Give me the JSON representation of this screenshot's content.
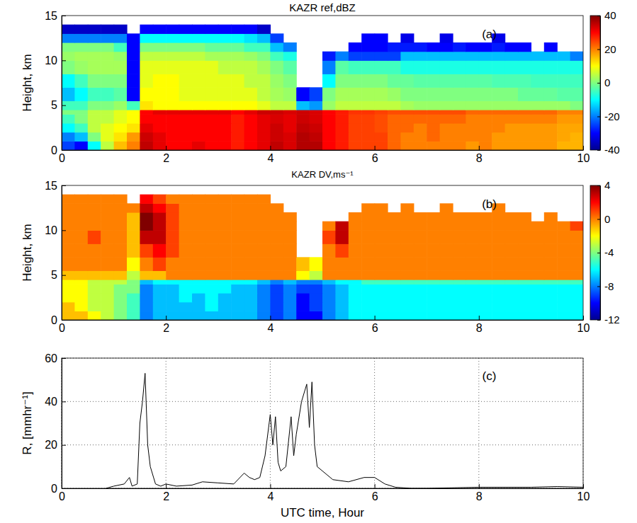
{
  "chart_data": [
    {
      "type": "heatmap",
      "title": "KAZR ref,dBZ",
      "ylabel": "Height, km",
      "annotation": "(a)",
      "xlim": [
        0,
        10
      ],
      "xticks": [
        0,
        2,
        4,
        6,
        8,
        10
      ],
      "ylim": [
        0,
        15
      ],
      "yticks": [
        0,
        5,
        10,
        15
      ],
      "grid": false,
      "x_edges": [
        0,
        0.25,
        0.5,
        0.75,
        1,
        1.25,
        1.5,
        1.75,
        2,
        2.25,
        2.5,
        2.75,
        3,
        3.25,
        3.5,
        3.75,
        4,
        4.25,
        4.5,
        4.75,
        5,
        5.25,
        5.5,
        5.75,
        6,
        6.25,
        6.5,
        6.75,
        7,
        7.25,
        7.5,
        7.75,
        8,
        8.25,
        8.5,
        8.75,
        9,
        9.25,
        9.5,
        9.75,
        10
      ],
      "y_edges": [
        0,
        1,
        2,
        3,
        4,
        4.5,
        5.5,
        7,
        8.5,
        10,
        11,
        12,
        13,
        14
      ],
      "cells": [
        [
          -25,
          -30,
          -10,
          5,
          15,
          20,
          35,
          32,
          30,
          30,
          32,
          30,
          30,
          28,
          30,
          32,
          35,
          33,
          36,
          36,
          30,
          28,
          25,
          25,
          25,
          22,
          20,
          20,
          20,
          20,
          20,
          18,
          20,
          18,
          18,
          18,
          18,
          18,
          16,
          16
        ],
        [
          -20,
          -15,
          0,
          8,
          12,
          18,
          34,
          32,
          30,
          30,
          30,
          30,
          30,
          28,
          30,
          32,
          34,
          33,
          36,
          35,
          30,
          28,
          25,
          25,
          25,
          22,
          20,
          20,
          22,
          20,
          20,
          20,
          20,
          18,
          18,
          18,
          18,
          18,
          17,
          16
        ],
        [
          -10,
          -5,
          5,
          8,
          10,
          12,
          32,
          30,
          30,
          30,
          30,
          30,
          30,
          28,
          30,
          32,
          34,
          32,
          35,
          34,
          30,
          28,
          25,
          25,
          24,
          22,
          22,
          20,
          22,
          20,
          20,
          20,
          20,
          20,
          18,
          18,
          18,
          18,
          17,
          17
        ],
        [
          -5,
          0,
          5,
          5,
          8,
          10,
          30,
          30,
          30,
          30,
          30,
          30,
          30,
          28,
          30,
          32,
          33,
          32,
          34,
          33,
          30,
          28,
          25,
          25,
          24,
          22,
          22,
          22,
          22,
          22,
          22,
          20,
          20,
          20,
          20,
          20,
          20,
          20,
          18,
          18
        ],
        [
          0,
          0,
          5,
          5,
          8,
          10,
          30,
          32,
          32,
          32,
          32,
          32,
          32,
          30,
          32,
          34,
          34,
          33,
          34,
          33,
          30,
          28,
          26,
          26,
          25,
          24,
          24,
          24,
          24,
          24,
          24,
          22,
          22,
          22,
          22,
          22,
          22,
          22,
          20,
          20
        ],
        [
          -5,
          -5,
          0,
          0,
          2,
          -5,
          12,
          10,
          10,
          10,
          10,
          10,
          10,
          10,
          10,
          8,
          5,
          5,
          -15,
          -18,
          2,
          5,
          5,
          5,
          5,
          5,
          3,
          2,
          2,
          2,
          2,
          2,
          2,
          2,
          2,
          2,
          2,
          2,
          2,
          0
        ],
        [
          -15,
          -10,
          -5,
          -5,
          -3,
          -30,
          10,
          10,
          10,
          8,
          8,
          8,
          8,
          8,
          8,
          5,
          3,
          2,
          -30,
          -25,
          0,
          3,
          3,
          3,
          3,
          2,
          0,
          0,
          0,
          0,
          0,
          0,
          0,
          0,
          0,
          -2,
          -2,
          -2,
          -3,
          -3
        ],
        [
          -10,
          -5,
          0,
          0,
          0,
          -30,
          8,
          10,
          10,
          8,
          8,
          8,
          8,
          8,
          5,
          5,
          2,
          0,
          null,
          null,
          -10,
          0,
          0,
          0,
          0,
          -2,
          -2,
          -3,
          -3,
          -3,
          -3,
          -3,
          -3,
          -4,
          -4,
          -4,
          -5,
          -5,
          -5,
          -5
        ],
        [
          0,
          2,
          3,
          3,
          3,
          -30,
          8,
          8,
          8,
          8,
          8,
          8,
          5,
          5,
          5,
          3,
          0,
          -3,
          null,
          null,
          -20,
          -3,
          -5,
          -5,
          -5,
          -5,
          -8,
          -8,
          -8,
          -8,
          -8,
          -8,
          -8,
          -8,
          -8,
          -8,
          -8,
          -8,
          -8,
          -8
        ],
        [
          2,
          3,
          3,
          3,
          2,
          -30,
          5,
          5,
          5,
          5,
          5,
          3,
          3,
          3,
          2,
          0,
          -5,
          -8,
          null,
          null,
          -28,
          -20,
          -25,
          -25,
          -25,
          -25,
          -15,
          -15,
          -15,
          -15,
          -15,
          -15,
          -15,
          -15,
          -15,
          -15,
          -15,
          -15,
          -15,
          -20
        ],
        [
          0,
          0,
          0,
          0,
          -5,
          -30,
          0,
          0,
          0,
          0,
          0,
          -2,
          -2,
          -2,
          -5,
          -5,
          -15,
          -20,
          null,
          null,
          null,
          null,
          -30,
          -30,
          -30,
          -28,
          -28,
          -28,
          -30,
          -30,
          -28,
          -30,
          -30,
          -28,
          -30,
          -30,
          null,
          -30,
          null,
          null
        ],
        [
          -20,
          -20,
          -20,
          -20,
          -20,
          -30,
          -10,
          -10,
          -10,
          -10,
          -10,
          -10,
          -10,
          -10,
          -12,
          -15,
          -25,
          null,
          null,
          null,
          null,
          null,
          null,
          -30,
          -30,
          null,
          -32,
          null,
          null,
          -32,
          null,
          null,
          null,
          -32,
          null,
          null,
          null,
          null,
          null,
          null
        ],
        [
          -35,
          -35,
          -35,
          -35,
          -35,
          null,
          -30,
          -30,
          -30,
          -30,
          -30,
          -30,
          -30,
          -30,
          -30,
          -35,
          null,
          null,
          null,
          null,
          null,
          null,
          null,
          null,
          null,
          null,
          null,
          null,
          null,
          null,
          null,
          null,
          null,
          null,
          null,
          null,
          null,
          null,
          null,
          null
        ]
      ],
      "colorbar": {
        "lim": [
          -40,
          40
        ],
        "ticks": [
          -40,
          -20,
          0,
          20,
          40
        ]
      }
    },
    {
      "type": "heatmap",
      "title": "KAZR DV,ms⁻¹",
      "ylabel": "Height, km",
      "annotation": "(b)",
      "xlim": [
        0,
        10
      ],
      "xticks": [
        0,
        2,
        4,
        6,
        8,
        10
      ],
      "ylim": [
        0,
        15
      ],
      "yticks": [
        0,
        5,
        10,
        15
      ],
      "grid": false,
      "x_edges": [
        0,
        0.25,
        0.5,
        0.75,
        1,
        1.25,
        1.5,
        1.75,
        2,
        2.25,
        2.5,
        2.75,
        3,
        3.25,
        3.5,
        3.75,
        4,
        4.25,
        4.5,
        4.75,
        5,
        5.25,
        5.5,
        5.75,
        6,
        6.25,
        6.5,
        6.75,
        7,
        7.25,
        7.5,
        7.75,
        8,
        8.25,
        8.5,
        8.75,
        9,
        9.25,
        9.5,
        9.75,
        10
      ],
      "y_edges": [
        0,
        1,
        2,
        3,
        4,
        4.5,
        5.5,
        7,
        8.5,
        10,
        11,
        12,
        13,
        14
      ],
      "cells": [
        [
          -1,
          -1,
          -2,
          -3,
          -4,
          -5,
          -8,
          -7,
          -7,
          -7,
          -7,
          -7,
          -7,
          -7,
          -7,
          -8,
          -9,
          -8,
          -10,
          -10,
          -8,
          -7,
          -6,
          -6,
          -6,
          -6,
          -6,
          -6,
          -6,
          -6,
          -6,
          -6,
          -6,
          -6,
          -6,
          -6,
          -6,
          -6,
          -6,
          -6
        ],
        [
          -1,
          -2,
          -3,
          -3,
          -4,
          -5,
          -8,
          -7,
          -7,
          -7,
          -7,
          -6,
          -7,
          -7,
          -7,
          -8,
          -9,
          -8,
          -10,
          -9,
          -8,
          -7,
          -6,
          -6,
          -6,
          -6,
          -6,
          -6,
          -6,
          -6,
          -6,
          -6,
          -6,
          -6,
          -6,
          -6,
          -6,
          -6,
          -6,
          -6
        ],
        [
          -2,
          -2,
          -3,
          -3,
          -4,
          -5,
          -8,
          -7,
          -7,
          -6,
          -7,
          -6,
          -7,
          -7,
          -7,
          -8,
          -9,
          -8,
          -10,
          -9,
          -8,
          -7,
          -6,
          -6,
          -6,
          -6,
          -6,
          -6,
          -6,
          -6,
          -6,
          -6,
          -6,
          -6,
          -6,
          -6,
          -6,
          -6,
          -6,
          -6
        ],
        [
          -2,
          -2,
          -3,
          -3,
          -4,
          -4,
          -8,
          -7,
          -7,
          -6,
          -6,
          -6,
          -6,
          -7,
          -7,
          -8,
          -9,
          -8,
          -9,
          -9,
          -8,
          -7,
          -6,
          -6,
          -6,
          -6,
          -6,
          -6,
          -6,
          -6,
          -6,
          -6,
          -6,
          -6,
          -6,
          -6,
          -6,
          -6,
          -6,
          -6
        ],
        [
          -2,
          -2,
          -3,
          -3,
          -3,
          -4,
          -7,
          -6,
          -6,
          -6,
          -6,
          -6,
          -6,
          -6,
          -6,
          -7,
          -8,
          -7,
          -8,
          -8,
          -7,
          -6,
          -6,
          -5,
          -5,
          -5,
          -5,
          -5,
          -5,
          -5,
          -5,
          -5,
          -5,
          -5,
          -5,
          -5,
          -5,
          -5,
          -5,
          -5
        ],
        [
          -1,
          -1,
          -1,
          -1,
          -1,
          -3,
          -1,
          -1,
          0,
          0,
          0,
          0,
          0,
          0,
          0,
          0,
          0,
          0,
          -2,
          -3,
          0,
          0,
          0,
          0,
          0,
          0,
          0,
          0,
          0,
          0,
          0,
          0,
          0,
          0,
          0,
          0,
          0,
          0,
          0,
          0
        ],
        [
          0,
          0,
          0,
          0,
          0,
          -2,
          0,
          1,
          0,
          0,
          0,
          0,
          0,
          0,
          0,
          0,
          0,
          0,
          -1,
          -2,
          0,
          0,
          0,
          0,
          0,
          0,
          0,
          0,
          0,
          0,
          0,
          0,
          0,
          0,
          0,
          0,
          0,
          0,
          0,
          0
        ],
        [
          0,
          0,
          0,
          0,
          0,
          -1,
          1,
          2,
          1,
          0,
          0,
          0,
          0,
          0,
          0,
          0,
          0,
          0,
          null,
          null,
          0,
          1,
          0,
          0,
          0,
          0,
          0,
          0,
          0,
          0,
          0,
          0,
          0,
          0,
          0,
          0,
          0,
          0,
          0,
          0
        ],
        [
          0,
          0,
          1,
          0,
          0,
          -1,
          3,
          3,
          1,
          0,
          0,
          0,
          0,
          0,
          0,
          0,
          0,
          0,
          null,
          null,
          1,
          3,
          0,
          0,
          0,
          0,
          0,
          0,
          0,
          0,
          0,
          0,
          0,
          0,
          0,
          0,
          0,
          0,
          0,
          0
        ],
        [
          0,
          0,
          0,
          0,
          0,
          -1,
          4,
          3,
          1,
          0,
          0,
          0,
          0,
          0,
          0,
          0,
          0,
          0,
          null,
          null,
          0,
          3,
          0,
          0,
          0,
          0,
          0,
          0,
          0,
          0,
          0,
          0,
          0,
          0,
          0,
          0,
          0,
          0,
          0,
          1
        ],
        [
          0,
          0,
          0,
          0,
          0,
          -1,
          4,
          3,
          1,
          0,
          0,
          0,
          0,
          0,
          0,
          0,
          0,
          0,
          null,
          null,
          null,
          null,
          0,
          0,
          0,
          0,
          0,
          0,
          0,
          0,
          0,
          0,
          0,
          0,
          0,
          0,
          null,
          0,
          null,
          null
        ],
        [
          0,
          0,
          0,
          0,
          0,
          0,
          3,
          2,
          1,
          0,
          0,
          0,
          0,
          0,
          0,
          0,
          0,
          null,
          null,
          null,
          null,
          null,
          null,
          0,
          0,
          null,
          0,
          null,
          null,
          0,
          null,
          null,
          null,
          0,
          null,
          null,
          null,
          null,
          null,
          null
        ],
        [
          0,
          0,
          0,
          0,
          0,
          null,
          2,
          1,
          0,
          0,
          0,
          0,
          0,
          0,
          0,
          0,
          null,
          null,
          null,
          null,
          null,
          null,
          null,
          null,
          null,
          null,
          null,
          null,
          null,
          null,
          null,
          null,
          null,
          null,
          null,
          null,
          null,
          null,
          null,
          null
        ]
      ],
      "colorbar": {
        "lim": [
          -12,
          4
        ],
        "ticks": [
          -12,
          -8,
          -4,
          0,
          4
        ]
      }
    },
    {
      "type": "line",
      "ylabel": "R, [mmhr⁻¹]",
      "xlabel": "UTC time, Hour",
      "annotation": "(c)",
      "color": "#000000",
      "xlim": [
        0,
        10
      ],
      "xticks": [
        0,
        2,
        4,
        6,
        8,
        10
      ],
      "ylim": [
        0,
        60
      ],
      "yticks": [
        0,
        20,
        40,
        60
      ],
      "grid": true,
      "x": [
        0.85,
        1.0,
        1.2,
        1.3,
        1.35,
        1.45,
        1.5,
        1.55,
        1.6,
        1.65,
        1.7,
        1.8,
        1.9,
        2.0,
        2.2,
        2.5,
        2.7,
        3.0,
        3.3,
        3.5,
        3.6,
        3.7,
        3.8,
        3.9,
        4.0,
        4.05,
        4.1,
        4.15,
        4.2,
        4.3,
        4.4,
        4.45,
        4.5,
        4.6,
        4.7,
        4.75,
        4.8,
        4.85,
        4.9,
        5.0,
        5.2,
        5.5,
        5.8,
        6.0,
        6.2,
        6.4,
        6.7,
        7.0,
        8.0,
        9.0,
        9.5,
        10.0
      ],
      "values": [
        0,
        1,
        2,
        5,
        1,
        2,
        30,
        40,
        53,
        20,
        10,
        2,
        1,
        2,
        1,
        1.5,
        3,
        2.5,
        2,
        7,
        5,
        4,
        5,
        15,
        34,
        20,
        33,
        12,
        8,
        10,
        33,
        15,
        25,
        40,
        48,
        28,
        49,
        20,
        10,
        8,
        4,
        3,
        5,
        5,
        2,
        0.5,
        0,
        0,
        0.5,
        0.5,
        0.8,
        0.5
      ]
    }
  ]
}
